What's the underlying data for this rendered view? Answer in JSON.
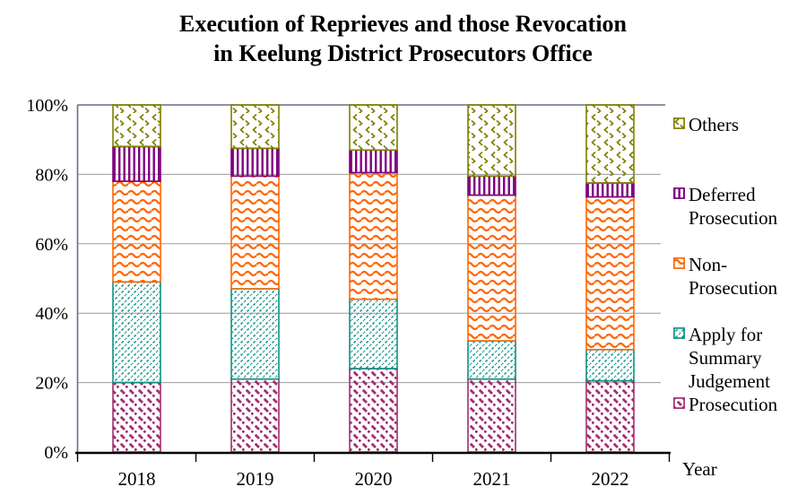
{
  "title": {
    "line1": "Execution of Reprieves and those Revocation",
    "line2": "in Keelung District Prosecutors Office"
  },
  "axes": {
    "y_ticks": [
      {
        "label": "0%",
        "value": 0
      },
      {
        "label": "20%",
        "value": 20
      },
      {
        "label": "40%",
        "value": 40
      },
      {
        "label": "60%",
        "value": 60
      },
      {
        "label": "80%",
        "value": 80
      },
      {
        "label": "100%",
        "value": 100
      }
    ],
    "x_axis_title": "Year"
  },
  "legend": {
    "items": [
      {
        "key": "others",
        "lines": [
          "Others"
        ],
        "pattern": "others",
        "color": "#7f7f00"
      },
      {
        "key": "deferred",
        "lines": [
          "Deferred",
          "Prosecution"
        ],
        "pattern": "deferred",
        "color": "#800080"
      },
      {
        "key": "nonpros",
        "lines": [
          "Non-",
          "Prosecution"
        ],
        "pattern": "nonpros",
        "color": "#ff6600"
      },
      {
        "key": "summary",
        "lines": [
          "Apply for",
          "Summary",
          "Judgement"
        ],
        "pattern": "summary",
        "color": "#109184"
      },
      {
        "key": "prosecution",
        "lines": [
          "Prosecution"
        ],
        "pattern": "prosecution",
        "color": "#a23070"
      }
    ]
  },
  "chart_data": {
    "type": "bar",
    "stacked": true,
    "units": "percent of cases",
    "title": "Execution of Reprieves and those Revocation in Keelung District Prosecutors Office",
    "xlabel": "Year",
    "ylabel": "",
    "ylim": [
      0,
      100
    ],
    "grid": true,
    "legend_position": "right",
    "categories": [
      "2018",
      "2019",
      "2020",
      "2021",
      "2022"
    ],
    "series": [
      {
        "name": "Prosecution",
        "pattern": "prosecution",
        "color": "#a23070",
        "values": [
          20,
          21,
          24,
          21,
          20.5
        ]
      },
      {
        "name": "Apply for Summary Judgement",
        "pattern": "summary",
        "color": "#109184",
        "values": [
          29,
          26,
          20,
          11,
          9
        ]
      },
      {
        "name": "Non-Prosecution",
        "pattern": "nonpros",
        "color": "#ff6600",
        "values": [
          29,
          32.5,
          36.5,
          42,
          44
        ]
      },
      {
        "name": "Deferred Prosecution",
        "pattern": "deferred",
        "color": "#800080",
        "values": [
          10,
          8,
          6.5,
          5.5,
          4
        ]
      },
      {
        "name": "Others",
        "pattern": "others",
        "color": "#7f7f00",
        "values": [
          12,
          12.5,
          13,
          20.5,
          22.5
        ]
      }
    ]
  },
  "colors": {
    "frame": "#6b6b85",
    "gridline": "#9b9b9b",
    "axis": "#000000"
  }
}
